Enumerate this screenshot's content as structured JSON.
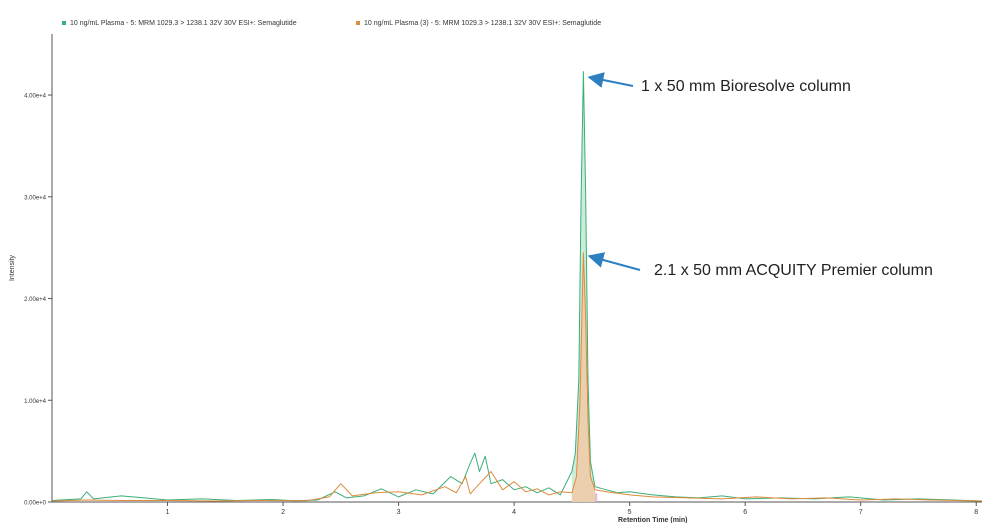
{
  "chart_data": {
    "type": "line",
    "title": "",
    "xlabel": "Retention Time (min)",
    "ylabel": "Intensity",
    "xlim": [
      0,
      8.05
    ],
    "ylim": [
      0,
      46000
    ],
    "x_ticks": [
      1,
      2,
      3,
      4,
      5,
      6,
      7,
      8
    ],
    "y_ticks": [
      {
        "value": 0,
        "label": "0.00e+0"
      },
      {
        "value": 10000,
        "label": "1.00e+4"
      },
      {
        "value": 20000,
        "label": "2.00e+4"
      },
      {
        "value": 30000,
        "label": "3.00e+4"
      },
      {
        "value": 40000,
        "label": "4.00e+4"
      }
    ],
    "grid": false,
    "legend_position": "top-left",
    "series": [
      {
        "name": "10 ng/mL Plasma - 5: MRM 1029.3 > 1238.1 32V 30V ESI+: Semaglutide",
        "color": "#3aaf78",
        "fill": "#bfe6cf",
        "peak": {
          "x": 4.6,
          "y": 42300
        },
        "points": [
          [
            0,
            150
          ],
          [
            0.25,
            300
          ],
          [
            0.3,
            1000
          ],
          [
            0.36,
            300
          ],
          [
            0.6,
            600
          ],
          [
            0.8,
            400
          ],
          [
            1.0,
            200
          ],
          [
            1.3,
            300
          ],
          [
            1.6,
            150
          ],
          [
            1.9,
            250
          ],
          [
            2.1,
            120
          ],
          [
            2.3,
            200
          ],
          [
            2.45,
            1000
          ],
          [
            2.55,
            400
          ],
          [
            2.7,
            600
          ],
          [
            2.85,
            1300
          ],
          [
            3.0,
            500
          ],
          [
            3.15,
            1200
          ],
          [
            3.3,
            800
          ],
          [
            3.45,
            2500
          ],
          [
            3.55,
            1800
          ],
          [
            3.62,
            3800
          ],
          [
            3.66,
            4800
          ],
          [
            3.7,
            3000
          ],
          [
            3.75,
            4500
          ],
          [
            3.8,
            1800
          ],
          [
            3.9,
            2200
          ],
          [
            4.0,
            1200
          ],
          [
            4.1,
            1500
          ],
          [
            4.2,
            900
          ],
          [
            4.3,
            1400
          ],
          [
            4.4,
            700
          ],
          [
            4.5,
            3000
          ],
          [
            4.53,
            4800
          ],
          [
            4.56,
            12000
          ],
          [
            4.58,
            30000
          ],
          [
            4.6,
            42300
          ],
          [
            4.62,
            30000
          ],
          [
            4.64,
            12000
          ],
          [
            4.66,
            4000
          ],
          [
            4.7,
            1500
          ],
          [
            4.8,
            1200
          ],
          [
            4.9,
            900
          ],
          [
            5.0,
            1000
          ],
          [
            5.2,
            700
          ],
          [
            5.4,
            500
          ],
          [
            5.6,
            400
          ],
          [
            5.8,
            600
          ],
          [
            6.0,
            300
          ],
          [
            6.3,
            400
          ],
          [
            6.6,
            300
          ],
          [
            6.9,
            500
          ],
          [
            7.2,
            200
          ],
          [
            7.5,
            300
          ],
          [
            7.8,
            200
          ],
          [
            8.05,
            100
          ]
        ]
      },
      {
        "name": "10 ng/mL Plasma (3) - 5: MRM 1029.3 > 1238.1 32V 30V ESI+: Semaglutide",
        "color": "#e08a3c",
        "fill": "#f2c9a4",
        "peak": {
          "x": 4.6,
          "y": 24500
        },
        "points": [
          [
            0,
            100
          ],
          [
            0.3,
            200
          ],
          [
            0.6,
            150
          ],
          [
            1.0,
            150
          ],
          [
            1.4,
            100
          ],
          [
            1.8,
            150
          ],
          [
            2.2,
            120
          ],
          [
            2.4,
            500
          ],
          [
            2.5,
            1800
          ],
          [
            2.6,
            600
          ],
          [
            2.8,
            900
          ],
          [
            3.0,
            1000
          ],
          [
            3.2,
            700
          ],
          [
            3.4,
            1500
          ],
          [
            3.5,
            900
          ],
          [
            3.58,
            2500
          ],
          [
            3.62,
            800
          ],
          [
            3.7,
            1800
          ],
          [
            3.8,
            3000
          ],
          [
            3.9,
            1200
          ],
          [
            4.0,
            2000
          ],
          [
            4.1,
            1000
          ],
          [
            4.2,
            1300
          ],
          [
            4.3,
            700
          ],
          [
            4.4,
            1000
          ],
          [
            4.5,
            900
          ],
          [
            4.54,
            2500
          ],
          [
            4.57,
            10000
          ],
          [
            4.59,
            20000
          ],
          [
            4.6,
            24500
          ],
          [
            4.62,
            18000
          ],
          [
            4.64,
            8000
          ],
          [
            4.66,
            2500
          ],
          [
            4.7,
            1200
          ],
          [
            4.8,
            1000
          ],
          [
            5.0,
            700
          ],
          [
            5.2,
            500
          ],
          [
            5.5,
            400
          ],
          [
            5.8,
            300
          ],
          [
            6.1,
            500
          ],
          [
            6.4,
            300
          ],
          [
            6.7,
            400
          ],
          [
            7.0,
            200
          ],
          [
            7.3,
            300
          ],
          [
            7.6,
            200
          ],
          [
            8.05,
            100
          ]
        ]
      }
    ],
    "baseline_band": {
      "x_start": 4.5,
      "x_end": 4.72,
      "color": "#d9a3c7"
    }
  },
  "annotations": [
    {
      "text": "1 x 50 mm Bioresolve column",
      "series_index": 0
    },
    {
      "text": "2.1 x 50 mm ACQUITY Premier column",
      "series_index": 1
    }
  ],
  "colors": {
    "axis": "#555555",
    "arrow": "#2e7fc0",
    "text": "#222222"
  }
}
